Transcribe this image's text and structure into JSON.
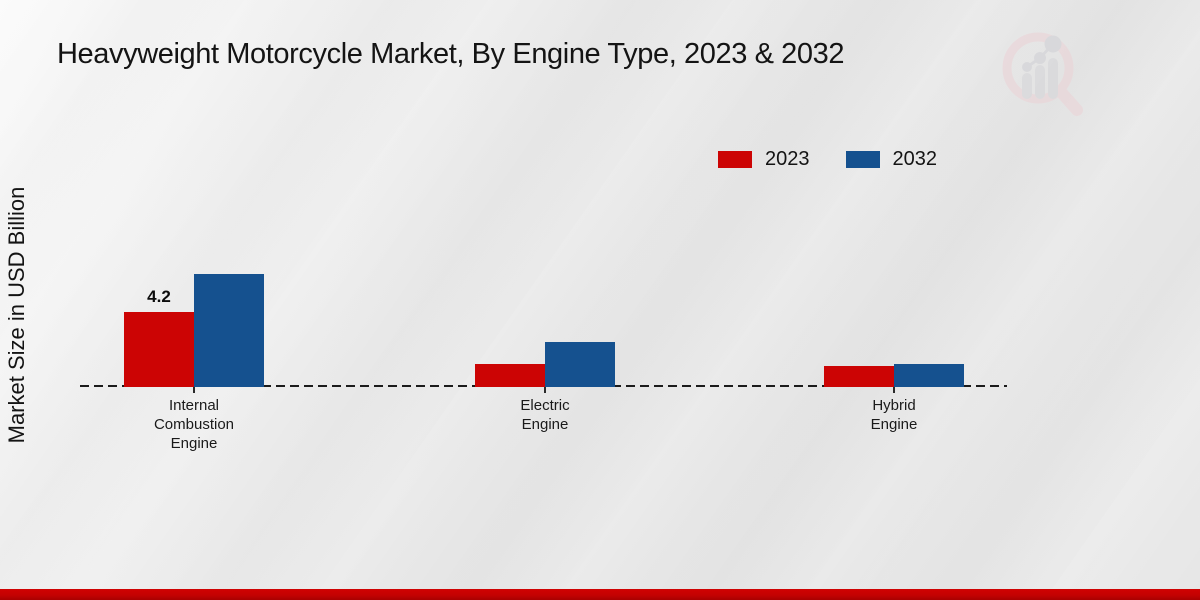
{
  "page": {
    "title": "Heavyweight Motorcycle Market, By Engine Type, 2023 & 2032",
    "ylabel": "Market Size in USD Billion"
  },
  "chart_data": {
    "type": "bar",
    "title": "Heavyweight Motorcycle Market, By Engine Type, 2023 & 2032",
    "ylabel": "Market Size in USD Billion",
    "xlabel": "",
    "categories": [
      "Internal Combustion Engine",
      "Electric Engine",
      "Hybrid Engine"
    ],
    "series": [
      {
        "name": "2023",
        "color": "#cc0404",
        "values": [
          4.2,
          1.3,
          1.2
        ],
        "value_labels": [
          "4.2",
          "",
          ""
        ]
      },
      {
        "name": "2032",
        "color": "#15518f",
        "values": [
          6.3,
          2.5,
          1.3
        ],
        "value_labels": [
          "",
          "",
          ""
        ]
      }
    ],
    "ylim": [
      0,
      7
    ],
    "grid": false,
    "legend_position": "top-right",
    "baseline_style": "dashed"
  },
  "branding": {
    "logo": "market-research-magnifier-logo",
    "footer_bar_color": "#c40404"
  }
}
